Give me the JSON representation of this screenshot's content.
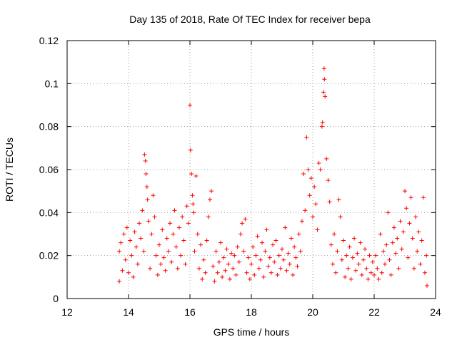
{
  "chart_data": {
    "type": "scatter",
    "title": "Day 135 of 2018, Rate Of TEC Index for receiver bepa",
    "xlabel": "GPS time / hours",
    "ylabel": "ROTI / TECUs",
    "xlim": [
      12,
      24
    ],
    "ylim": [
      0,
      0.12
    ],
    "x_ticks": [
      12,
      14,
      16,
      18,
      20,
      22,
      24
    ],
    "x_tick_labels": [
      "12",
      "14",
      "16",
      "18",
      "20",
      "22",
      "24"
    ],
    "y_ticks": [
      0,
      0.02,
      0.04,
      0.06,
      0.08,
      0.1,
      0.12
    ],
    "y_tick_labels": [
      "0",
      "0.02",
      "0.04",
      "0.06",
      "0.08",
      "0.1",
      "0.12"
    ],
    "grid": true,
    "marker": "+",
    "marker_color": "#ff0000",
    "series": [
      {
        "name": "ROTI",
        "points": [
          [
            13.7,
            0.008
          ],
          [
            13.7,
            0.022
          ],
          [
            13.75,
            0.026
          ],
          [
            13.8,
            0.013
          ],
          [
            13.85,
            0.03
          ],
          [
            13.9,
            0.018
          ],
          [
            13.95,
            0.033
          ],
          [
            14.0,
            0.012
          ],
          [
            14.05,
            0.027
          ],
          [
            14.1,
            0.02
          ],
          [
            14.15,
            0.01
          ],
          [
            14.2,
            0.031
          ],
          [
            14.25,
            0.024
          ],
          [
            14.3,
            0.016
          ],
          [
            14.35,
            0.035
          ],
          [
            14.4,
            0.028
          ],
          [
            14.45,
            0.041
          ],
          [
            14.5,
            0.022
          ],
          [
            14.52,
            0.067
          ],
          [
            14.55,
            0.064
          ],
          [
            14.57,
            0.058
          ],
          [
            14.6,
            0.052
          ],
          [
            14.62,
            0.046
          ],
          [
            14.65,
            0.036
          ],
          [
            14.7,
            0.014
          ],
          [
            14.75,
            0.03
          ],
          [
            14.8,
            0.048
          ],
          [
            14.85,
            0.038
          ],
          [
            14.9,
            0.02
          ],
          [
            14.95,
            0.011
          ],
          [
            15.0,
            0.025
          ],
          [
            15.05,
            0.016
          ],
          [
            15.1,
            0.032
          ],
          [
            15.15,
            0.019
          ],
          [
            15.2,
            0.013
          ],
          [
            15.25,
            0.028
          ],
          [
            15.3,
            0.022
          ],
          [
            15.35,
            0.035
          ],
          [
            15.4,
            0.017
          ],
          [
            15.45,
            0.03
          ],
          [
            15.5,
            0.041
          ],
          [
            15.55,
            0.024
          ],
          [
            15.6,
            0.014
          ],
          [
            15.65,
            0.033
          ],
          [
            15.7,
            0.02
          ],
          [
            15.75,
            0.038
          ],
          [
            15.8,
            0.027
          ],
          [
            15.85,
            0.016
          ],
          [
            15.9,
            0.043
          ],
          [
            15.95,
            0.035
          ],
          [
            16.0,
            0.09
          ],
          [
            16.02,
            0.069
          ],
          [
            16.05,
            0.058
          ],
          [
            16.08,
            0.048
          ],
          [
            16.1,
            0.044
          ],
          [
            16.12,
            0.04
          ],
          [
            16.15,
            0.022
          ],
          [
            16.2,
            0.057
          ],
          [
            16.25,
            0.03
          ],
          [
            16.3,
            0.014
          ],
          [
            16.35,
            0.025
          ],
          [
            16.4,
            0.009
          ],
          [
            16.45,
            0.018
          ],
          [
            16.5,
            0.012
          ],
          [
            16.55,
            0.027
          ],
          [
            16.6,
            0.038
          ],
          [
            16.65,
            0.046
          ],
          [
            16.7,
            0.05
          ],
          [
            16.75,
            0.015
          ],
          [
            16.8,
            0.008
          ],
          [
            16.85,
            0.022
          ],
          [
            16.9,
            0.012
          ],
          [
            16.95,
            0.017
          ],
          [
            17.0,
            0.026
          ],
          [
            17.05,
            0.01
          ],
          [
            17.1,
            0.019
          ],
          [
            17.15,
            0.013
          ],
          [
            17.2,
            0.023
          ],
          [
            17.25,
            0.016
          ],
          [
            17.3,
            0.009
          ],
          [
            17.35,
            0.021
          ],
          [
            17.4,
            0.014
          ],
          [
            17.45,
            0.02
          ],
          [
            17.5,
            0.011
          ],
          [
            17.55,
            0.024
          ],
          [
            17.6,
            0.017
          ],
          [
            17.65,
            0.03
          ],
          [
            17.7,
            0.035
          ],
          [
            17.75,
            0.022
          ],
          [
            17.8,
            0.037
          ],
          [
            17.85,
            0.012
          ],
          [
            17.9,
            0.019
          ],
          [
            17.95,
            0.009
          ],
          [
            18.0,
            0.016
          ],
          [
            18.05,
            0.024
          ],
          [
            18.1,
            0.011
          ],
          [
            18.15,
            0.02
          ],
          [
            18.2,
            0.029
          ],
          [
            18.25,
            0.014
          ],
          [
            18.3,
            0.018
          ],
          [
            18.35,
            0.026
          ],
          [
            18.4,
            0.01
          ],
          [
            18.45,
            0.022
          ],
          [
            18.5,
            0.032
          ],
          [
            18.55,
            0.015
          ],
          [
            18.6,
            0.019
          ],
          [
            18.65,
            0.012
          ],
          [
            18.7,
            0.025
          ],
          [
            18.75,
            0.017
          ],
          [
            18.8,
            0.027
          ],
          [
            18.85,
            0.011
          ],
          [
            18.9,
            0.02
          ],
          [
            18.95,
            0.014
          ],
          [
            19.0,
            0.023
          ],
          [
            19.05,
            0.018
          ],
          [
            19.1,
            0.033
          ],
          [
            19.15,
            0.013
          ],
          [
            19.2,
            0.021
          ],
          [
            19.25,
            0.016
          ],
          [
            19.3,
            0.028
          ],
          [
            19.35,
            0.011
          ],
          [
            19.4,
            0.024
          ],
          [
            19.45,
            0.019
          ],
          [
            19.5,
            0.015
          ],
          [
            19.55,
            0.03
          ],
          [
            19.6,
            0.022
          ],
          [
            19.65,
            0.036
          ],
          [
            19.7,
            0.058
          ],
          [
            19.75,
            0.041
          ],
          [
            19.8,
            0.075
          ],
          [
            19.85,
            0.06
          ],
          [
            19.9,
            0.048
          ],
          [
            19.95,
            0.056
          ],
          [
            20.0,
            0.038
          ],
          [
            20.05,
            0.052
          ],
          [
            20.1,
            0.044
          ],
          [
            20.15,
            0.032
          ],
          [
            20.2,
            0.063
          ],
          [
            20.25,
            0.06
          ],
          [
            20.3,
            0.08
          ],
          [
            20.32,
            0.082
          ],
          [
            20.35,
            0.096
          ],
          [
            20.37,
            0.107
          ],
          [
            20.38,
            0.102
          ],
          [
            20.4,
            0.094
          ],
          [
            20.45,
            0.065
          ],
          [
            20.5,
            0.055
          ],
          [
            20.55,
            0.045
          ],
          [
            20.6,
            0.025
          ],
          [
            20.65,
            0.016
          ],
          [
            20.7,
            0.03
          ],
          [
            20.75,
            0.012
          ],
          [
            20.8,
            0.022
          ],
          [
            20.85,
            0.046
          ],
          [
            20.9,
            0.038
          ],
          [
            20.95,
            0.018
          ],
          [
            21.0,
            0.027
          ],
          [
            21.05,
            0.01
          ],
          [
            21.1,
            0.02
          ],
          [
            21.15,
            0.014
          ],
          [
            21.2,
            0.024
          ],
          [
            21.25,
            0.009
          ],
          [
            21.3,
            0.019
          ],
          [
            21.35,
            0.028
          ],
          [
            21.4,
            0.013
          ],
          [
            21.45,
            0.021
          ],
          [
            21.5,
            0.016
          ],
          [
            21.55,
            0.026
          ],
          [
            21.6,
            0.011
          ],
          [
            21.65,
            0.018
          ],
          [
            21.7,
            0.023
          ],
          [
            21.75,
            0.014
          ],
          [
            21.8,
            0.009
          ],
          [
            21.85,
            0.02
          ],
          [
            21.9,
            0.012
          ],
          [
            21.95,
            0.017
          ],
          [
            22.0,
            0.011
          ],
          [
            22.05,
            0.02
          ],
          [
            22.1,
            0.014
          ],
          [
            22.15,
            0.009
          ],
          [
            22.2,
            0.03
          ],
          [
            22.25,
            0.012
          ],
          [
            22.3,
            0.022
          ],
          [
            22.35,
            0.016
          ],
          [
            22.4,
            0.025
          ],
          [
            22.45,
            0.04
          ],
          [
            22.5,
            0.018
          ],
          [
            22.55,
            0.011
          ],
          [
            22.6,
            0.026
          ],
          [
            22.65,
            0.033
          ],
          [
            22.7,
            0.021
          ],
          [
            22.75,
            0.028
          ],
          [
            22.8,
            0.014
          ],
          [
            22.85,
            0.036
          ],
          [
            22.9,
            0.023
          ],
          [
            22.95,
            0.031
          ],
          [
            23.0,
            0.05
          ],
          [
            23.05,
            0.042
          ],
          [
            23.1,
            0.019
          ],
          [
            23.15,
            0.035
          ],
          [
            23.2,
            0.047
          ],
          [
            23.25,
            0.028
          ],
          [
            23.3,
            0.014
          ],
          [
            23.35,
            0.038
          ],
          [
            23.4,
            0.022
          ],
          [
            23.45,
            0.031
          ],
          [
            23.5,
            0.016
          ],
          [
            23.55,
            0.027
          ],
          [
            23.6,
            0.047
          ],
          [
            23.65,
            0.012
          ],
          [
            23.7,
            0.02
          ],
          [
            23.72,
            0.006
          ]
        ]
      }
    ]
  }
}
